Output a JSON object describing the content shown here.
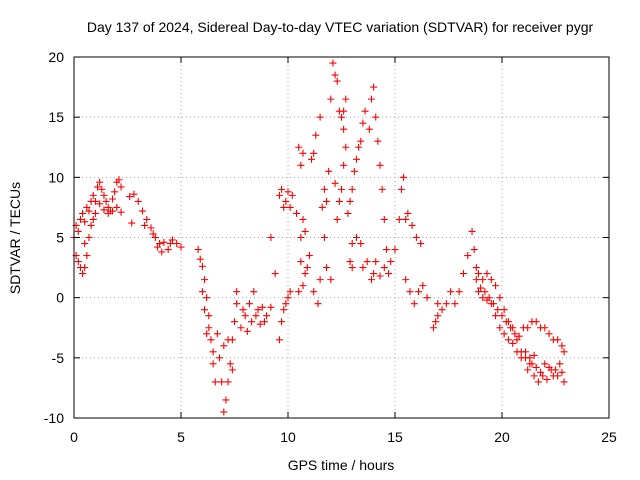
{
  "chart_data": {
    "type": "scatter",
    "title": "Day 137 of 2024, Sidereal Day-to-day VTEC variation (SDTVAR) for receiver pygr",
    "xlabel": "GPS time / hours",
    "ylabel": "SDTVAR / TECUs",
    "xlim": [
      0,
      25
    ],
    "ylim": [
      -10,
      20
    ],
    "xticks": [
      0,
      5,
      10,
      15,
      20,
      25
    ],
    "yticks": [
      -10,
      -5,
      0,
      5,
      10,
      15,
      20
    ],
    "grid": true,
    "marker": "plus",
    "series_color": "#ff0000",
    "series": [
      {
        "name": "pygr",
        "points": [
          [
            0.0,
            5.0
          ],
          [
            0.1,
            6.0
          ],
          [
            0.2,
            5.5
          ],
          [
            0.3,
            6.5
          ],
          [
            0.4,
            7.0
          ],
          [
            0.5,
            6.3
          ],
          [
            0.6,
            7.5
          ],
          [
            0.7,
            7.2
          ],
          [
            0.8,
            8.0
          ],
          [
            0.9,
            8.5
          ],
          [
            1.0,
            8.0
          ],
          [
            1.1,
            9.2
          ],
          [
            1.2,
            9.6
          ],
          [
            1.3,
            9.0
          ],
          [
            1.4,
            8.5
          ],
          [
            1.5,
            8.0
          ],
          [
            1.6,
            7.5
          ],
          [
            1.7,
            7.2
          ],
          [
            1.8,
            8.2
          ],
          [
            1.9,
            8.8
          ],
          [
            2.0,
            9.6
          ],
          [
            2.1,
            9.8
          ],
          [
            2.2,
            9.2
          ],
          [
            0.1,
            3.5
          ],
          [
            0.2,
            3.0
          ],
          [
            0.3,
            2.5
          ],
          [
            0.4,
            2.0
          ],
          [
            0.5,
            2.5
          ],
          [
            0.6,
            3.5
          ],
          [
            0.5,
            4.5
          ],
          [
            0.7,
            5.0
          ],
          [
            0.8,
            6.0
          ],
          [
            0.9,
            6.5
          ],
          [
            1.0,
            7.0
          ],
          [
            1.2,
            7.8
          ],
          [
            1.4,
            7.3
          ],
          [
            1.6,
            7.0
          ],
          [
            1.8,
            7.2
          ],
          [
            2.0,
            7.5
          ],
          [
            2.2,
            7.1
          ],
          [
            2.6,
            8.4
          ],
          [
            2.8,
            8.6
          ],
          [
            3.0,
            8.0
          ],
          [
            3.2,
            7.2
          ],
          [
            3.4,
            6.5
          ],
          [
            3.6,
            5.8
          ],
          [
            3.8,
            5.0
          ],
          [
            4.0,
            4.5
          ],
          [
            4.2,
            4.6
          ],
          [
            4.4,
            4.0
          ],
          [
            4.6,
            4.8
          ],
          [
            4.8,
            4.5
          ],
          [
            5.0,
            4.2
          ],
          [
            3.9,
            4.2
          ],
          [
            4.1,
            3.8
          ],
          [
            4.5,
            4.5
          ],
          [
            2.7,
            6.2
          ],
          [
            3.3,
            6.0
          ],
          [
            3.7,
            5.3
          ],
          [
            5.8,
            4.0
          ],
          [
            5.9,
            3.2
          ],
          [
            6.0,
            2.6
          ],
          [
            6.1,
            1.5
          ],
          [
            6.2,
            0.0
          ],
          [
            6.3,
            -1.5
          ],
          [
            6.4,
            -3.5
          ],
          [
            6.5,
            -5.5
          ],
          [
            6.6,
            -7.0
          ],
          [
            6.0,
            0.5
          ],
          [
            6.1,
            -1.0
          ],
          [
            6.3,
            -2.5
          ],
          [
            6.5,
            -4.5
          ],
          [
            6.2,
            -3.0
          ],
          [
            6.7,
            -3.0
          ],
          [
            6.8,
            -5.0
          ],
          [
            6.9,
            -7.0
          ],
          [
            7.0,
            -9.5
          ],
          [
            7.1,
            -8.5
          ],
          [
            7.2,
            -7.0
          ],
          [
            7.3,
            -5.5
          ],
          [
            7.4,
            -3.5
          ],
          [
            7.5,
            -2.0
          ],
          [
            7.6,
            -0.5
          ],
          [
            7.0,
            -4.0
          ],
          [
            7.2,
            -3.5
          ],
          [
            7.4,
            -6.0
          ],
          [
            7.6,
            0.5
          ],
          [
            7.8,
            -2.5
          ],
          [
            8.0,
            -1.5
          ],
          [
            8.2,
            -0.5
          ],
          [
            8.4,
            0.5
          ],
          [
            8.6,
            -1.0
          ],
          [
            8.8,
            -0.8
          ],
          [
            9.0,
            -1.5
          ],
          [
            9.2,
            -0.8
          ],
          [
            8.1,
            -2.8
          ],
          [
            8.3,
            -2.0
          ],
          [
            8.5,
            -1.5
          ],
          [
            8.7,
            -2.2
          ],
          [
            7.9,
            -1.0
          ],
          [
            8.9,
            -2.0
          ],
          [
            9.2,
            5.0
          ],
          [
            9.4,
            2.0
          ],
          [
            9.6,
            -3.5
          ],
          [
            9.7,
            -2.0
          ],
          [
            9.8,
            -1.0
          ],
          [
            9.9,
            -0.5
          ],
          [
            10.0,
            0.0
          ],
          [
            10.1,
            0.5
          ],
          [
            9.6,
            8.5
          ],
          [
            9.7,
            9.0
          ],
          [
            9.8,
            7.5
          ],
          [
            9.9,
            8.0
          ],
          [
            10.0,
            8.8
          ],
          [
            10.1,
            7.5
          ],
          [
            10.2,
            8.5
          ],
          [
            10.4,
            7.0
          ],
          [
            10.5,
            12.5
          ],
          [
            10.6,
            11.0
          ],
          [
            10.7,
            12.0
          ],
          [
            10.6,
            5.0
          ],
          [
            10.7,
            6.5
          ],
          [
            10.8,
            5.5
          ],
          [
            10.6,
            3.0
          ],
          [
            10.8,
            2.0
          ],
          [
            10.9,
            2.5
          ],
          [
            10.7,
            1.0
          ],
          [
            10.5,
            0.5
          ],
          [
            11.0,
            3.5
          ],
          [
            11.1,
            11.5
          ],
          [
            11.2,
            12.0
          ],
          [
            11.3,
            13.5
          ],
          [
            11.5,
            15.0
          ],
          [
            11.6,
            7.5
          ],
          [
            11.7,
            5.0
          ],
          [
            11.8,
            8.0
          ],
          [
            11.7,
            9.0
          ],
          [
            11.9,
            10.5
          ],
          [
            11.5,
            1.5
          ],
          [
            11.8,
            2.5
          ],
          [
            12.0,
            1.5
          ],
          [
            11.2,
            0.5
          ],
          [
            11.4,
            -0.5
          ],
          [
            12.0,
            16.5
          ],
          [
            12.1,
            19.5
          ],
          [
            12.2,
            18.5
          ],
          [
            12.3,
            18.0
          ],
          [
            12.4,
            15.5
          ],
          [
            12.5,
            15.0
          ],
          [
            12.6,
            14.0
          ],
          [
            12.7,
            12.5
          ],
          [
            12.6,
            11.0
          ],
          [
            12.5,
            9.0
          ],
          [
            12.4,
            8.0
          ],
          [
            12.3,
            6.5
          ],
          [
            12.2,
            9.5
          ],
          [
            12.6,
            15.5
          ],
          [
            12.7,
            16.5
          ],
          [
            12.8,
            7.0
          ],
          [
            12.9,
            8.0
          ],
          [
            13.0,
            9.0
          ],
          [
            13.1,
            10.5
          ],
          [
            13.2,
            11.5
          ],
          [
            13.3,
            12.5
          ],
          [
            13.4,
            13.0
          ],
          [
            13.5,
            14.5
          ],
          [
            13.6,
            15.5
          ],
          [
            13.0,
            4.5
          ],
          [
            13.2,
            5.0
          ],
          [
            13.4,
            4.5
          ],
          [
            12.9,
            3.0
          ],
          [
            13.0,
            2.5
          ],
          [
            13.5,
            2.5
          ],
          [
            13.7,
            3.0
          ],
          [
            13.9,
            1.5
          ],
          [
            14.0,
            2.0
          ],
          [
            14.1,
            3.0
          ],
          [
            14.3,
            1.8
          ],
          [
            14.5,
            2.5
          ],
          [
            14.7,
            2.0
          ],
          [
            13.8,
            14.0
          ],
          [
            13.9,
            16.5
          ],
          [
            14.0,
            17.5
          ],
          [
            14.1,
            15.0
          ],
          [
            14.2,
            13.0
          ],
          [
            14.3,
            11.0
          ],
          [
            14.4,
            9.0
          ],
          [
            14.5,
            6.5
          ],
          [
            14.6,
            4.0
          ],
          [
            14.8,
            3.0
          ],
          [
            15.0,
            4.0
          ],
          [
            15.2,
            6.5
          ],
          [
            15.3,
            9.0
          ],
          [
            15.4,
            10.0
          ],
          [
            15.5,
            6.5
          ],
          [
            15.6,
            7.0
          ],
          [
            15.8,
            6.0
          ],
          [
            16.0,
            5.0
          ],
          [
            16.2,
            4.5
          ],
          [
            15.5,
            1.5
          ],
          [
            15.7,
            0.5
          ],
          [
            15.9,
            -0.5
          ],
          [
            16.1,
            0.5
          ],
          [
            16.3,
            1.0
          ],
          [
            16.5,
            0.0
          ],
          [
            16.8,
            -2.5
          ],
          [
            17.0,
            -1.5
          ],
          [
            17.2,
            -1.0
          ],
          [
            17.4,
            -0.5
          ],
          [
            17.6,
            0.5
          ],
          [
            17.8,
            -0.5
          ],
          [
            18.0,
            0.5
          ],
          [
            18.2,
            2.0
          ],
          [
            18.4,
            3.5
          ],
          [
            18.6,
            5.5
          ],
          [
            18.7,
            4.0
          ],
          [
            18.8,
            2.5
          ],
          [
            17.0,
            -0.5
          ],
          [
            16.9,
            -2.0
          ],
          [
            18.9,
            2.0
          ],
          [
            19.1,
            1.5
          ],
          [
            19.3,
            2.0
          ],
          [
            19.5,
            1.5
          ],
          [
            19.7,
            1.0
          ],
          [
            19.9,
            0.0
          ],
          [
            20.1,
            -1.0
          ],
          [
            20.3,
            -2.0
          ],
          [
            20.5,
            -2.5
          ],
          [
            20.7,
            -3.5
          ],
          [
            20.9,
            -4.5
          ],
          [
            21.1,
            -5.0
          ],
          [
            21.3,
            -5.5
          ],
          [
            21.5,
            -6.5
          ],
          [
            21.7,
            -7.0
          ],
          [
            21.9,
            -6.5
          ],
          [
            22.1,
            -6.8
          ],
          [
            22.3,
            -6.0
          ],
          [
            22.5,
            -6.0
          ],
          [
            22.7,
            -5.5
          ],
          [
            22.9,
            -7.0
          ],
          [
            18.9,
            0.5
          ],
          [
            19.1,
            0.0
          ],
          [
            19.3,
            -0.2
          ],
          [
            19.5,
            -0.5
          ],
          [
            19.7,
            -1.5
          ],
          [
            19.9,
            -2.5
          ],
          [
            20.1,
            -3.0
          ],
          [
            20.3,
            -3.5
          ],
          [
            20.5,
            -3.8
          ],
          [
            20.7,
            -4.5
          ],
          [
            20.9,
            -5.0
          ],
          [
            21.1,
            -4.5
          ],
          [
            21.3,
            -5.0
          ],
          [
            21.5,
            -4.8
          ],
          [
            18.8,
            1.5
          ],
          [
            19.0,
            0.8
          ],
          [
            19.2,
            0.5
          ],
          [
            19.4,
            0.0
          ],
          [
            19.6,
            -0.5
          ],
          [
            19.8,
            -1.0
          ],
          [
            20.0,
            -1.5
          ],
          [
            20.2,
            -2.0
          ],
          [
            20.4,
            -2.5
          ],
          [
            20.6,
            -3.0
          ],
          [
            20.8,
            -3.2
          ],
          [
            21.0,
            -2.5
          ],
          [
            21.2,
            -2.5
          ],
          [
            21.4,
            -2.0
          ],
          [
            21.6,
            -2.0
          ],
          [
            21.8,
            -2.5
          ],
          [
            22.0,
            -2.5
          ],
          [
            22.2,
            -3.0
          ],
          [
            22.4,
            -3.5
          ],
          [
            22.6,
            -3.5
          ],
          [
            22.8,
            -4.0
          ],
          [
            22.9,
            -4.5
          ],
          [
            21.2,
            -6.0
          ],
          [
            21.4,
            -5.5
          ],
          [
            21.6,
            -5.8
          ],
          [
            21.8,
            -6.2
          ],
          [
            22.0,
            -5.5
          ],
          [
            22.2,
            -5.8
          ],
          [
            22.4,
            -6.5
          ],
          [
            22.6,
            -6.5
          ],
          [
            22.8,
            -6.2
          ]
        ]
      }
    ]
  }
}
